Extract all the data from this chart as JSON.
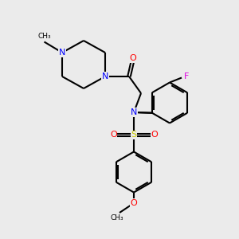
{
  "bg_color": "#ebebeb",
  "atom_colors": {
    "N": "#0000ff",
    "O": "#ff0000",
    "S": "#cccc00",
    "F": "#e000e0",
    "C": "#000000"
  },
  "bond_color": "#000000",
  "bond_width": 1.5,
  "font_size_atom": 8
}
